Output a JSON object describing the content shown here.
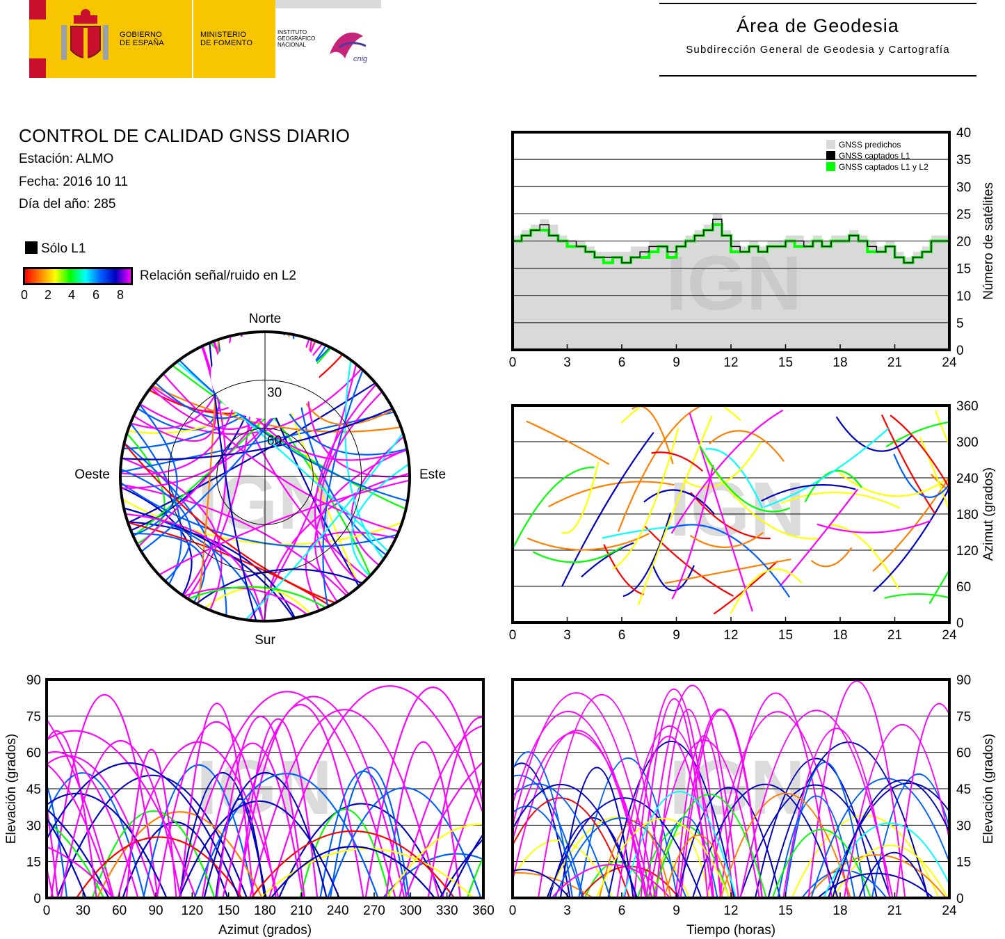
{
  "header": {
    "gobierno": [
      "GOBIERNO",
      "DE ESPAÑA"
    ],
    "ministerio": [
      "MINISTERIO",
      "DE FOMENTO"
    ],
    "instituto": [
      "INSTITUTO",
      "GEOGRÁFICO",
      "NACIONAL"
    ],
    "cnig": "cnig",
    "area_title": "Área de Geodesia",
    "area_subtitle": "Subdirección General de Geodesia y Cartografía"
  },
  "report": {
    "title": "CONTROL DE CALIDAD GNSS DIARIO",
    "station": "Estación: ALMO",
    "date": "Fecha: 2016 10 11",
    "doy": "Día del año: 285"
  },
  "legend": {
    "only_l1": "Sólo L1",
    "snr_label": "Relación señal/ruido en L2",
    "snr_ticks": [
      "0",
      "2",
      "4",
      "6",
      "8"
    ],
    "gradient_colors": [
      "#ff0000",
      "#ff8000",
      "#ffff00",
      "#00ff00",
      "#00ffff",
      "#0060ff",
      "#0000c0",
      "#ff00ff"
    ]
  },
  "watermark": "IGN",
  "chart_data": [
    {
      "id": "satellite-count",
      "type": "line",
      "xlabel": "",
      "ylabel": "Número de satélites",
      "xlim": [
        0,
        24
      ],
      "ylim": [
        0,
        40
      ],
      "xticks": [
        "0",
        "3",
        "6",
        "9",
        "12",
        "15",
        "18",
        "21",
        "24"
      ],
      "yticks": [
        "0",
        "5",
        "10",
        "15",
        "20",
        "25",
        "30",
        "35",
        "40"
      ],
      "grid": true,
      "legend_position": "top-right",
      "series": [
        {
          "name": "GNSS predichos",
          "color": "#d9d9d9",
          "x": [
            0,
            0.5,
            1,
            1.5,
            2,
            2.5,
            3,
            3.5,
            4,
            4.5,
            5,
            5.5,
            6,
            6.5,
            7,
            7.5,
            8,
            8.5,
            9,
            9.5,
            10,
            10.5,
            11,
            11.5,
            12,
            12.5,
            13,
            13.5,
            14,
            14.5,
            15,
            15.5,
            16,
            16.5,
            17,
            17.5,
            18,
            18.5,
            19,
            19.5,
            20,
            20.5,
            21,
            21.5,
            22,
            22.5,
            23,
            23.5,
            24
          ],
          "y": [
            21,
            22,
            23,
            24,
            23,
            21,
            20,
            20,
            19,
            18,
            18,
            18,
            18,
            19,
            19,
            20,
            20,
            20,
            20,
            21,
            22,
            23,
            25,
            22,
            20,
            19,
            20,
            19,
            20,
            20,
            21,
            21,
            20,
            21,
            20,
            21,
            21,
            22,
            21,
            20,
            19,
            20,
            18,
            17,
            18,
            19,
            21,
            21,
            21
          ]
        },
        {
          "name": "GNSS captados L1",
          "color": "#000000",
          "x": [
            0,
            0.5,
            1,
            1.5,
            2,
            2.5,
            3,
            3.5,
            4,
            4.5,
            5,
            5.5,
            6,
            6.5,
            7,
            7.5,
            8,
            8.5,
            9,
            9.5,
            10,
            10.5,
            11,
            11.5,
            12,
            12.5,
            13,
            13.5,
            14,
            14.5,
            15,
            15.5,
            16,
            16.5,
            17,
            17.5,
            18,
            18.5,
            19,
            19.5,
            20,
            20.5,
            21,
            21.5,
            22,
            22.5,
            23,
            23.5,
            24
          ],
          "y": [
            20,
            21,
            22,
            23,
            21,
            20,
            20,
            19,
            18,
            17,
            17,
            17,
            16,
            17,
            18,
            19,
            19,
            18,
            19,
            20,
            21,
            22,
            24,
            21,
            19,
            18,
            19,
            18,
            19,
            19,
            20,
            20,
            19,
            20,
            19,
            20,
            20,
            21,
            20,
            19,
            18,
            19,
            17,
            16,
            17,
            18,
            20,
            20,
            20
          ]
        },
        {
          "name": "GNSS captados L1 y L2",
          "color": "#00ff00",
          "x": [
            0,
            0.5,
            1,
            1.5,
            2,
            2.5,
            3,
            3.5,
            4,
            4.5,
            5,
            5.5,
            6,
            6.5,
            7,
            7.5,
            8,
            8.5,
            9,
            9.5,
            10,
            10.5,
            11,
            11.5,
            12,
            12.5,
            13,
            13.5,
            14,
            14.5,
            15,
            15.5,
            16,
            16.5,
            17,
            17.5,
            18,
            18.5,
            19,
            19.5,
            20,
            20.5,
            21,
            21.5,
            22,
            22.5,
            23,
            23.5,
            24
          ],
          "y": [
            20,
            21,
            22,
            22,
            21,
            20,
            19,
            19,
            18,
            17,
            16,
            17,
            16,
            17,
            17,
            18,
            19,
            17,
            19,
            20,
            21,
            22,
            23,
            21,
            18,
            18,
            19,
            18,
            19,
            19,
            20,
            19,
            19,
            20,
            19,
            20,
            20,
            21,
            20,
            18,
            18,
            19,
            17,
            16,
            17,
            18,
            20,
            20,
            20
          ]
        }
      ]
    },
    {
      "id": "azimuth-time",
      "type": "scatter",
      "xlabel": "",
      "ylabel": "Azimut (grados)",
      "xlim": [
        0,
        24
      ],
      "ylim": [
        0,
        360
      ],
      "xticks": [
        "0",
        "3",
        "6",
        "9",
        "12",
        "15",
        "18",
        "21",
        "24"
      ],
      "yticks": [
        "0",
        "60",
        "120",
        "180",
        "240",
        "300",
        "360"
      ],
      "grid": true
    },
    {
      "id": "elevation-azimuth",
      "type": "scatter",
      "xlabel": "Azimut (grados)",
      "ylabel": "Elevación (grados)",
      "xlim": [
        0,
        360
      ],
      "ylim": [
        0,
        90
      ],
      "xticks": [
        "0",
        "30",
        "60",
        "90",
        "120",
        "150",
        "180",
        "210",
        "240",
        "270",
        "300",
        "330",
        "360"
      ],
      "yticks": [
        "0",
        "15",
        "30",
        "45",
        "60",
        "75",
        "90"
      ],
      "grid": true
    },
    {
      "id": "elevation-time",
      "type": "scatter",
      "xlabel": "Tiempo (horas)",
      "ylabel": "Elevación (grados)",
      "xlim": [
        0,
        24
      ],
      "ylim": [
        0,
        90
      ],
      "xticks": [
        "0",
        "3",
        "6",
        "9",
        "12",
        "15",
        "18",
        "21",
        "24"
      ],
      "yticks": [
        "0",
        "15",
        "30",
        "45",
        "60",
        "75",
        "90"
      ],
      "grid": true
    },
    {
      "id": "skyplot",
      "type": "scatter",
      "labels": {
        "north": "Norte",
        "south": "Sur",
        "west": "Oeste",
        "east": "Este"
      },
      "rings": [
        "30",
        "60"
      ]
    }
  ]
}
